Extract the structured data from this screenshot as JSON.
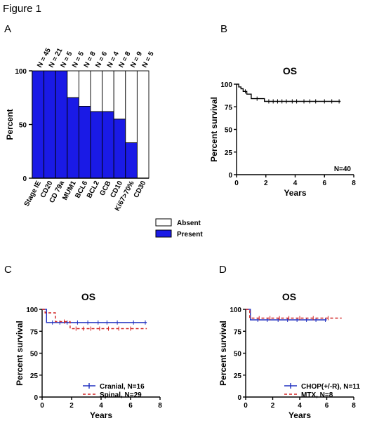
{
  "figure_title": "Figure 1",
  "chart_data": [
    {
      "panel": "A",
      "type": "bar",
      "stacked": true,
      "categories": [
        "Stage IE",
        "CD20",
        "CD 79a",
        "MUM1",
        "BCL6",
        "BCL2",
        "GCB",
        "CD10",
        "Ki67>70%",
        "CD30"
      ],
      "top_labels": [
        "N = 45",
        "N = 21",
        "N = 5",
        "N = 5",
        "N = 8",
        "N = 6",
        "N = 4",
        "N = 8",
        "N = 9",
        "N = 5"
      ],
      "series": [
        {
          "name": "Present",
          "color": "#1a1ae6",
          "values": [
            100,
            100,
            100,
            75,
            67,
            62,
            62,
            55,
            33,
            0
          ]
        },
        {
          "name": "Absent",
          "color": "#ffffff",
          "values": [
            0,
            0,
            0,
            25,
            33,
            38,
            38,
            45,
            67,
            100
          ]
        }
      ],
      "title": "",
      "xlabel": "",
      "ylabel": "Percent",
      "ylim": [
        0,
        100
      ],
      "yticks": [
        "0",
        "50",
        "100"
      ],
      "legend_position": "bottom-right"
    },
    {
      "panel": "B",
      "type": "line",
      "title": "OS",
      "xlabel": "Years",
      "ylabel": "Percent survival",
      "xlim": [
        0,
        8
      ],
      "ylim": [
        0,
        100
      ],
      "xticks": [
        "0",
        "2",
        "4",
        "6",
        "8"
      ],
      "yticks": [
        "0",
        "25",
        "50",
        "75",
        "100"
      ],
      "annotation": "N=40",
      "series": [
        {
          "color": "#000000",
          "steps": [
            [
              0,
              100
            ],
            [
              0.15,
              97
            ],
            [
              0.3,
              95
            ],
            [
              0.45,
              92
            ],
            [
              0.7,
              89
            ],
            [
              1.0,
              84
            ],
            [
              1.9,
              81
            ],
            [
              7.1,
              81
            ]
          ],
          "censor": [
            0.6,
            1.4,
            2.2,
            2.5,
            2.8,
            3.1,
            3.4,
            3.8,
            4.1,
            4.6,
            5.0,
            5.4,
            6.0,
            6.5,
            7.0
          ]
        }
      ]
    },
    {
      "panel": "C",
      "type": "line",
      "title": "OS",
      "xlabel": "Years",
      "ylabel": "Percent survival",
      "xlim": [
        0,
        8
      ],
      "ylim": [
        0,
        100
      ],
      "xticks": [
        "0",
        "2",
        "4",
        "6",
        "8"
      ],
      "yticks": [
        "0",
        "25",
        "50",
        "75",
        "100"
      ],
      "legend_position": "bottom-right",
      "series": [
        {
          "name": "Cranial, N=16",
          "color": "#2030c0",
          "dashed": false,
          "steps": [
            [
              0,
              100
            ],
            [
              0.3,
              85
            ],
            [
              7.1,
              85
            ]
          ],
          "censor": [
            0.7,
            1.2,
            1.7,
            2.4,
            3.1,
            3.8,
            4.4,
            5.1,
            6.2,
            7.0
          ]
        },
        {
          "name": "Spinal, N=29",
          "color": "#d02020",
          "dashed": true,
          "steps": [
            [
              0,
              100
            ],
            [
              0.2,
              96
            ],
            [
              0.9,
              86
            ],
            [
              1.9,
              78
            ],
            [
              7.1,
              78
            ]
          ],
          "censor": [
            1.5,
            2.3,
            2.8,
            3.3,
            3.9,
            4.5,
            5.2,
            6.0
          ]
        }
      ]
    },
    {
      "panel": "D",
      "type": "line",
      "title": "OS",
      "xlabel": "Years",
      "ylabel": "Percent survival",
      "xlim": [
        0,
        8
      ],
      "ylim": [
        0,
        100
      ],
      "xticks": [
        "0",
        "2",
        "4",
        "6",
        "8"
      ],
      "yticks": [
        "0",
        "25",
        "50",
        "75",
        "100"
      ],
      "legend_position": "bottom-right",
      "series": [
        {
          "name": "CHOP(+/-R), N=11",
          "color": "#2030c0",
          "dashed": false,
          "steps": [
            [
              0,
              100
            ],
            [
              0.35,
              88
            ],
            [
              6.0,
              88
            ]
          ],
          "censor": [
            0.9,
            1.6,
            2.4,
            3.1,
            3.8,
            4.5,
            5.2,
            5.9
          ]
        },
        {
          "name": "MTX, N=8",
          "color": "#d02020",
          "dashed": true,
          "steps": [
            [
              0,
              100
            ],
            [
              0.3,
              90
            ],
            [
              7.1,
              90
            ]
          ],
          "censor": [
            1.0,
            1.8,
            2.5,
            3.2,
            4.0,
            5.0,
            6.1
          ]
        }
      ]
    }
  ]
}
